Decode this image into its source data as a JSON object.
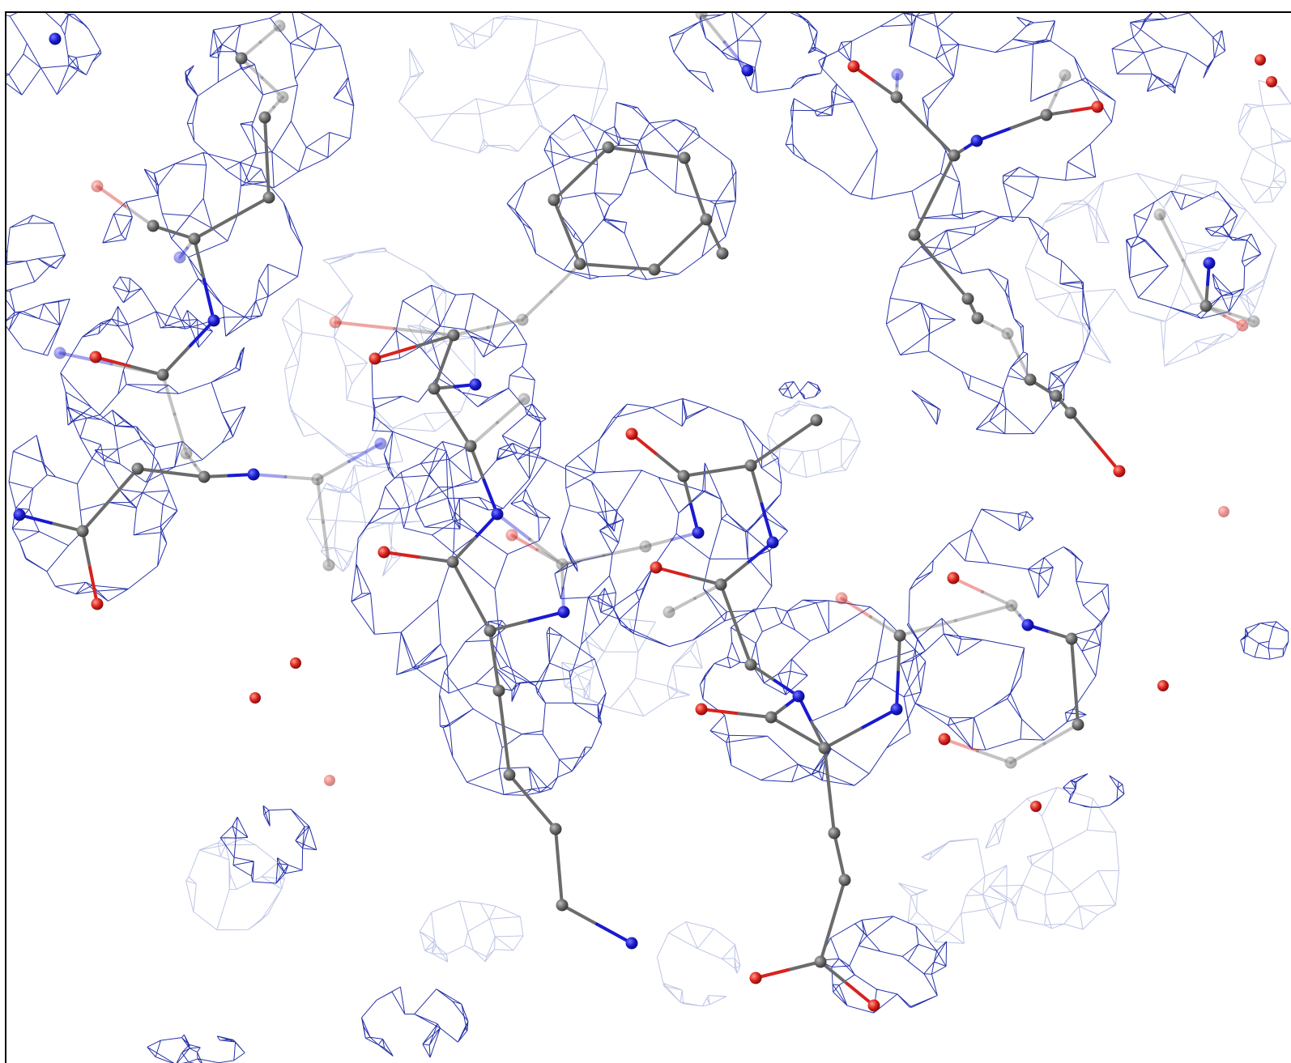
{
  "view": {
    "kind": "electron-density-map",
    "background_color": "#ffffff",
    "frame_color": "#000000"
  },
  "colors": {
    "mesh": "#2632a8",
    "mesh_faint": "#9aa6d6",
    "carbon": "#6b6b6b",
    "nitrogen": "#1a1ad0",
    "oxygen": "#d8221e",
    "water": "#d8221e"
  },
  "icons": {
    "carbon_atom": "carbon-atom-icon",
    "nitrogen_atom": "nitrogen-atom-icon",
    "oxygen_atom": "oxygen-atom-icon",
    "water_molecule": "water-molecule-icon"
  }
}
